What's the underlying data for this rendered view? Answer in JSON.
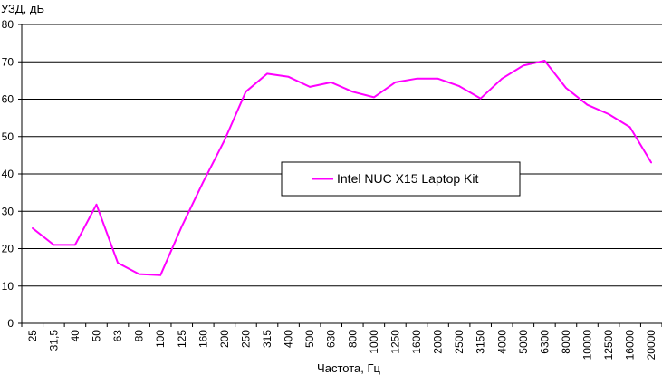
{
  "chart_data": {
    "type": "line",
    "title": "",
    "ylabel": "УЗД, дБ",
    "xlabel": "Частота, Гц",
    "ylim": [
      0,
      80
    ],
    "yticks": [
      0,
      10,
      20,
      30,
      40,
      50,
      60,
      70,
      80
    ],
    "grid": "horizontal",
    "legend_position": "center-right",
    "categories": [
      "25",
      "31,5",
      "40",
      "50",
      "63",
      "80",
      "100",
      "125",
      "160",
      "200",
      "250",
      "315",
      "400",
      "500",
      "630",
      "800",
      "1000",
      "1250",
      "1600",
      "2000",
      "2500",
      "3150",
      "4000",
      "5000",
      "6300",
      "8000",
      "10000",
      "12500",
      "16000",
      "20000"
    ],
    "series": [
      {
        "name": "Intel NUC X15 Laptop Kit",
        "color": "#ff00ff",
        "values": [
          25.5,
          21.0,
          21.0,
          31.8,
          16.2,
          13.2,
          12.9,
          26.0,
          37.8,
          49.0,
          62.0,
          66.8,
          66.0,
          63.3,
          64.5,
          62.0,
          60.5,
          64.5,
          65.5,
          65.5,
          63.5,
          60.2,
          65.5,
          69.0,
          70.3,
          63.0,
          58.5,
          56.0,
          52.5,
          43.0
        ]
      }
    ]
  }
}
